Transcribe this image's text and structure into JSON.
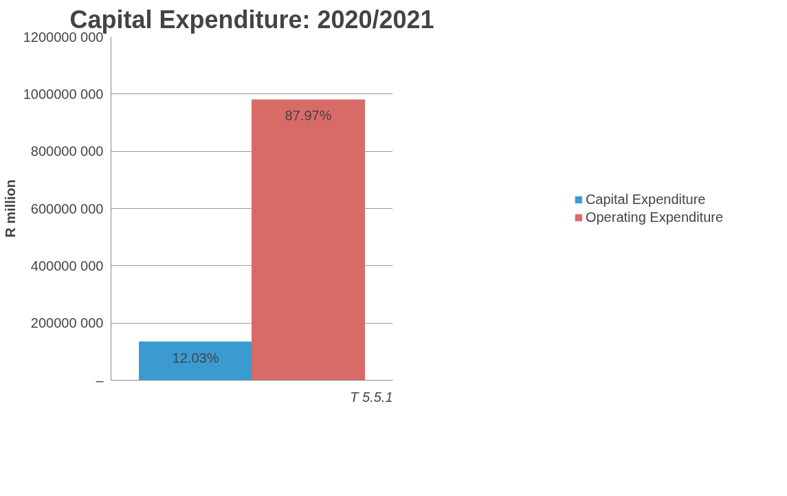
{
  "chart_data": {
    "type": "bar",
    "title": "Capital Expenditure: 2020/2021",
    "ylabel": "R million",
    "categories": [
      null
    ],
    "series": [
      {
        "name": "Capital Expenditure",
        "color": "#3b9bd1",
        "values": [
          134000000
        ]
      },
      {
        "name": "Operating Expenditure",
        "color": "#d96b67",
        "values": [
          980000000
        ]
      }
    ],
    "ylim": [
      0,
      1200000000
    ],
    "yticks": [
      {
        "value": 0,
        "label": "–"
      },
      {
        "value": 200000000,
        "label": "200000 000"
      },
      {
        "value": 400000000,
        "label": "400000 000"
      },
      {
        "value": 600000000,
        "label": "600000 000"
      },
      {
        "value": 800000000,
        "label": "800000 000"
      },
      {
        "value": 1000000000,
        "label": "1000000 000"
      },
      {
        "value": 1200000000,
        "label": "1200000 000"
      }
    ],
    "grid": "y",
    "legend": "right",
    "annotations": [
      {
        "text": "12.03%",
        "y": 134000000
      },
      {
        "text": "87.97%",
        "y": 980000000
      },
      "T 5.5.1"
    ]
  }
}
